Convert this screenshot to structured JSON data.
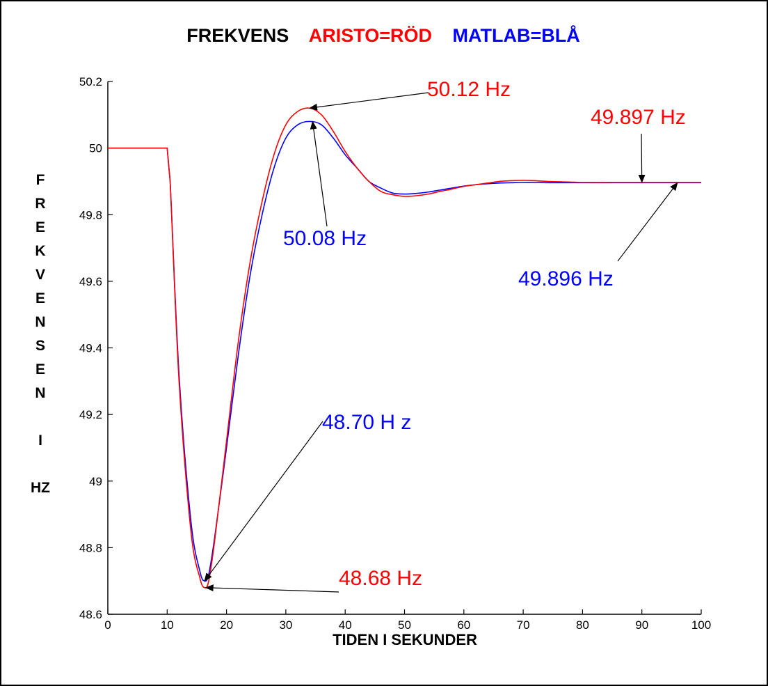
{
  "chart_data": {
    "type": "line",
    "title_parts": [
      {
        "text": "FREKVENS",
        "color": "#000000"
      },
      {
        "text": "ARISTO=RÖD",
        "color": "#ff0000"
      },
      {
        "text": "MATLAB=BLÅ",
        "color": "#0000ff"
      }
    ],
    "xlabel": "TIDEN I SEKUNDER",
    "ylabel_letters": [
      "F",
      "R",
      "E",
      "K",
      "V",
      "E",
      "N",
      "S",
      "E",
      "N",
      "",
      "I",
      "",
      "HZ"
    ],
    "xlim": [
      0,
      100
    ],
    "ylim": [
      48.6,
      50.2
    ],
    "xticks": [
      0,
      10,
      20,
      30,
      40,
      50,
      60,
      70,
      80,
      90,
      100
    ],
    "yticks": [
      48.6,
      48.8,
      49,
      49.2,
      49.4,
      49.6,
      49.8,
      50,
      50.2
    ],
    "xtick_labels": [
      "0",
      "10",
      "20",
      "30",
      "40",
      "50",
      "60",
      "70",
      "80",
      "90",
      "100"
    ],
    "ytick_labels": [
      "48.6",
      "48.8",
      "49",
      "49.2",
      "49.4",
      "49.6",
      "49.8",
      "50",
      "50.2"
    ],
    "grid": false,
    "series": [
      {
        "name": "ARISTO",
        "color": "#ff0000",
        "x": [
          0,
          10,
          10.5,
          12,
          14,
          15.5,
          16.3,
          17,
          18,
          20,
          22,
          24,
          26,
          28,
          30,
          32,
          34,
          36,
          38,
          40,
          42,
          44,
          46,
          48,
          50,
          52,
          54,
          56,
          58,
          60,
          62,
          64,
          66,
          68,
          70,
          72,
          74,
          76,
          78,
          80,
          85,
          90,
          100
        ],
        "y": [
          50.0,
          50.0,
          49.9,
          49.3,
          48.85,
          48.71,
          48.68,
          48.7,
          48.82,
          49.12,
          49.42,
          49.66,
          49.84,
          49.98,
          50.07,
          50.11,
          50.12,
          50.1,
          50.05,
          49.99,
          49.94,
          49.9,
          49.87,
          49.86,
          49.855,
          49.857,
          49.862,
          49.87,
          49.877,
          49.885,
          49.89,
          49.895,
          49.9,
          49.902,
          49.903,
          49.902,
          49.9,
          49.899,
          49.898,
          49.897,
          49.897,
          49.897,
          49.897
        ]
      },
      {
        "name": "MATLAB",
        "color": "#0000ff",
        "x": [
          0,
          10,
          10.5,
          12,
          14,
          15.5,
          16.3,
          17,
          18,
          20,
          22,
          24,
          26,
          28,
          30,
          32,
          34,
          36,
          38,
          40,
          42,
          44,
          46,
          48,
          50,
          52,
          54,
          56,
          58,
          60,
          62,
          64,
          66,
          68,
          70,
          72,
          74,
          76,
          78,
          80,
          85,
          90,
          100
        ],
        "y": [
          50.0,
          50.0,
          49.9,
          49.32,
          48.88,
          48.73,
          48.7,
          48.72,
          48.83,
          49.1,
          49.38,
          49.62,
          49.8,
          49.94,
          50.03,
          50.07,
          50.08,
          50.07,
          50.03,
          49.98,
          49.94,
          49.9,
          49.88,
          49.865,
          49.862,
          49.864,
          49.868,
          49.874,
          49.88,
          49.886,
          49.89,
          49.893,
          49.895,
          49.896,
          49.897,
          49.897,
          49.896,
          49.896,
          49.896,
          49.896,
          49.896,
          49.896,
          49.896
        ]
      }
    ],
    "annotations": [
      {
        "text": "50.12  Hz",
        "color": "#ff0000",
        "arrow_to": [
          34,
          50.12
        ]
      },
      {
        "text": "50.08 Hz",
        "color": "#0000ff",
        "arrow_to": [
          34.5,
          50.08
        ]
      },
      {
        "text": "49.897 Hz",
        "color": "#ff0000",
        "arrow_to": [
          90,
          49.897
        ]
      },
      {
        "text": "49.896 Hz",
        "color": "#0000ff",
        "arrow_to": [
          96,
          49.896
        ]
      },
      {
        "text": "48.70  H z",
        "color": "#0000ff",
        "arrow_to": [
          16.3,
          48.7
        ]
      },
      {
        "text": "48.68  Hz",
        "color": "#ff0000",
        "arrow_to": [
          16.5,
          48.68
        ]
      }
    ]
  }
}
